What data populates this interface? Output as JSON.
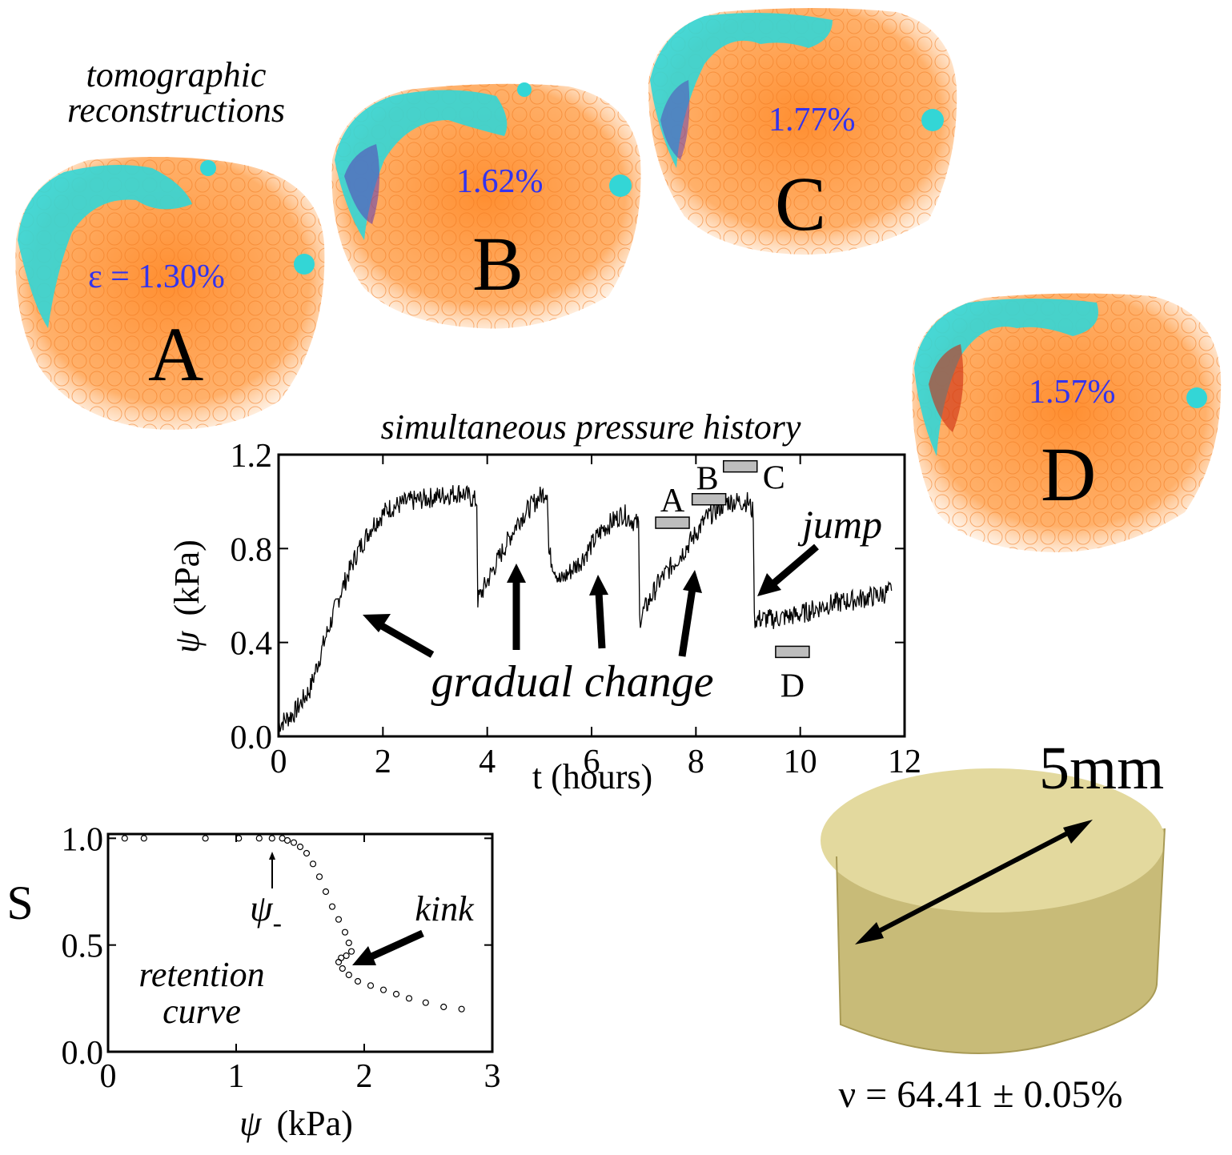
{
  "figure": {
    "recon_title_line1": "tomographic",
    "recon_title_line2": "reconstructions",
    "colors": {
      "grains": "#ff9a40",
      "water": "#33d6d6",
      "accent_blue": "#3333ee",
      "red_water": "#cc2a10",
      "packing": "#d8cc8c"
    }
  },
  "reconstructions": [
    {
      "letter": "A",
      "value": "ε = 1.30%"
    },
    {
      "letter": "B",
      "value": "1.62%"
    },
    {
      "letter": "C",
      "value": "1.77%"
    },
    {
      "letter": "D",
      "value": "1.57%"
    }
  ],
  "pressure_chart": {
    "title": "simultaneous pressure history",
    "xlabel": "t (hours)",
    "ylabel_symbol": "ψ",
    "ylabel_unit": "(kPa)",
    "xticks": [
      "0",
      "2",
      "4",
      "6",
      "8",
      "10",
      "12"
    ],
    "yticks": [
      "0.0",
      "0.4",
      "0.8",
      "1.2"
    ],
    "annotation_gradual": "gradual change",
    "annotation_jump": "jump",
    "markers": [
      {
        "label": "A",
        "t": 7.55,
        "psi": 0.91
      },
      {
        "label": "B",
        "t": 8.25,
        "psi": 1.01
      },
      {
        "label": "C",
        "t": 8.85,
        "psi": 1.15
      },
      {
        "label": "D",
        "t": 9.85,
        "psi": 0.36
      }
    ]
  },
  "retention_chart": {
    "ylabel": "S",
    "xlabel_symbol": "ψ",
    "xlabel_unit": "(kPa)",
    "label_line1": "retention",
    "label_line2": "curve",
    "annotation_kink": "kink",
    "annotation_psi": "ψ",
    "annotation_psi_sub": "-",
    "xticks": [
      "0",
      "1",
      "2",
      "3"
    ],
    "yticks": [
      "0.0",
      "0.5",
      "1.0"
    ]
  },
  "packing": {
    "scale_label": "5mm",
    "fraction_label": "ν = 64.41 ± 0.05%"
  },
  "chart_data": [
    {
      "type": "line",
      "title": "simultaneous pressure history",
      "xlabel": "t (hours)",
      "ylabel": "ψ (kPa)",
      "xlim": [
        0,
        12
      ],
      "ylim": [
        0,
        1.2
      ],
      "x": [
        0,
        0.3,
        0.6,
        0.9,
        1.2,
        1.5,
        1.8,
        2.1,
        2.5,
        3.0,
        3.5,
        3.8,
        3.82,
        4.2,
        4.6,
        5.0,
        5.15,
        5.18,
        5.4,
        5.8,
        6.2,
        6.6,
        6.9,
        6.92,
        7.3,
        7.8,
        8.2,
        8.6,
        9.0,
        9.1,
        9.12,
        9.5,
        10.0,
        10.5,
        11.0,
        11.5,
        11.75
      ],
      "y": [
        0.05,
        0.1,
        0.2,
        0.42,
        0.62,
        0.78,
        0.9,
        0.97,
        1.0,
        1.02,
        1.04,
        1.0,
        0.58,
        0.75,
        0.92,
        1.02,
        1.05,
        0.78,
        0.66,
        0.75,
        0.88,
        0.95,
        0.9,
        0.5,
        0.66,
        0.8,
        0.93,
        1.0,
        1.0,
        0.95,
        0.5,
        0.5,
        0.52,
        0.56,
        0.58,
        0.6,
        0.62
      ],
      "markers": [
        {
          "label": "A",
          "t": 7.55,
          "psi": 0.91
        },
        {
          "label": "B",
          "t": 8.25,
          "psi": 1.01
        },
        {
          "label": "C",
          "t": 8.85,
          "psi": 1.15
        },
        {
          "label": "D",
          "t": 9.85,
          "psi": 0.36
        }
      ]
    },
    {
      "type": "scatter",
      "xlabel": "ψ (kPa)",
      "ylabel": "S",
      "xlim": [
        0,
        3
      ],
      "ylim": [
        0,
        1.0
      ],
      "x": [
        0.13,
        0.28,
        0.76,
        1.02,
        1.18,
        1.28,
        1.36,
        1.4,
        1.45,
        1.5,
        1.55,
        1.6,
        1.65,
        1.7,
        1.75,
        1.8,
        1.85,
        1.88,
        1.9,
        1.86,
        1.82,
        1.8,
        1.83,
        1.88,
        1.95,
        2.05,
        2.15,
        2.25,
        2.35,
        2.48,
        2.62,
        2.76
      ],
      "y": [
        1.0,
        1.0,
        1.0,
        1.0,
        1.0,
        1.0,
        1.0,
        0.99,
        0.98,
        0.96,
        0.93,
        0.88,
        0.82,
        0.75,
        0.68,
        0.62,
        0.56,
        0.51,
        0.47,
        0.45,
        0.44,
        0.42,
        0.39,
        0.36,
        0.33,
        0.31,
        0.29,
        0.27,
        0.25,
        0.23,
        0.21,
        0.2
      ]
    }
  ]
}
